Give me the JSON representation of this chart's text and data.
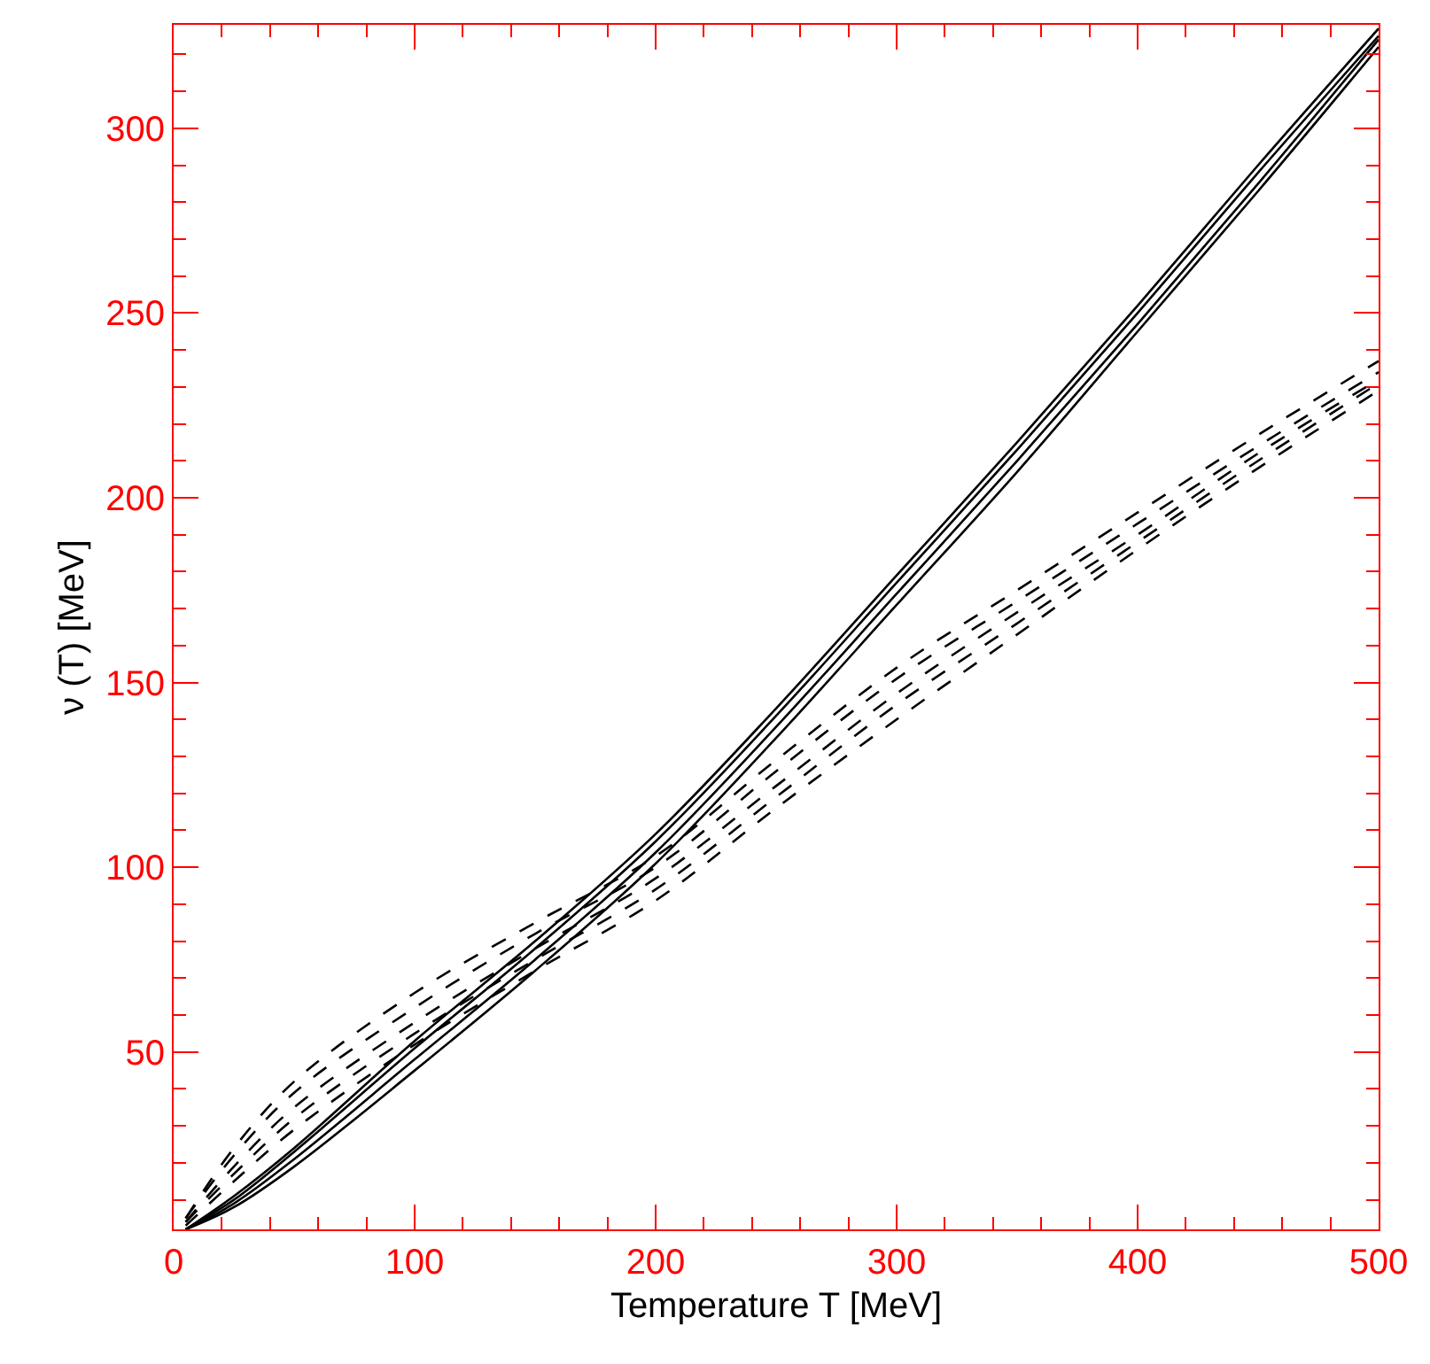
{
  "chart_data": {
    "type": "line",
    "xlabel": "Temperature T [MeV]",
    "ylabel": "ν (T) [MeV]",
    "x": [
      5,
      25,
      50,
      100,
      150,
      200,
      250,
      300,
      350,
      400,
      450,
      500
    ],
    "series": [
      {
        "color": "#000000",
        "line_style": "solid",
        "values": [
          2,
          11,
          24,
          53,
          80,
          109,
          143,
          179,
          215,
          252,
          290,
          327
        ]
      },
      {
        "color": "#000000",
        "line_style": "solid",
        "values": [
          2,
          10,
          23,
          51,
          78,
          107,
          141,
          177,
          213,
          250,
          288,
          325
        ]
      },
      {
        "color": "#000000",
        "line_style": "solid",
        "values": [
          2,
          9,
          21,
          48,
          75,
          104,
          138,
          174,
          210,
          247,
          285,
          324
        ]
      },
      {
        "color": "#000000",
        "line_style": "solid",
        "values": [
          2,
          8,
          19,
          45,
          72,
          101,
          135,
          171,
          207,
          245,
          283,
          322
        ]
      },
      {
        "color": "#000000",
        "line_style": "dashed",
        "values": [
          5,
          24,
          42,
          66,
          85,
          103,
          129,
          154,
          175,
          196,
          217,
          237
        ]
      },
      {
        "color": "#000000",
        "line_style": "dashed",
        "values": [
          5,
          22,
          39,
          62,
          82,
          100,
          126,
          151,
          172,
          193,
          214,
          234
        ]
      },
      {
        "color": "#000000",
        "line_style": "dashed",
        "values": [
          4,
          19,
          35,
          58,
          78,
          97,
          122,
          147,
          169,
          190,
          212,
          232
        ]
      },
      {
        "color": "#000000",
        "line_style": "dashed",
        "values": [
          4,
          17,
          32,
          55,
          75,
          94,
          119,
          144,
          166,
          188,
          210,
          231
        ]
      },
      {
        "color": "#000000",
        "line_style": "dashed",
        "values": [
          3,
          15,
          29,
          52,
          72,
          91,
          116,
          140,
          163,
          186,
          208,
          229
        ]
      }
    ],
    "xlim": [
      0,
      500
    ],
    "xticks": [
      0,
      100,
      200,
      300,
      400,
      500
    ],
    "ylim": [
      2,
      328
    ],
    "yticks": [
      50,
      100,
      150,
      200,
      250,
      300
    ]
  }
}
